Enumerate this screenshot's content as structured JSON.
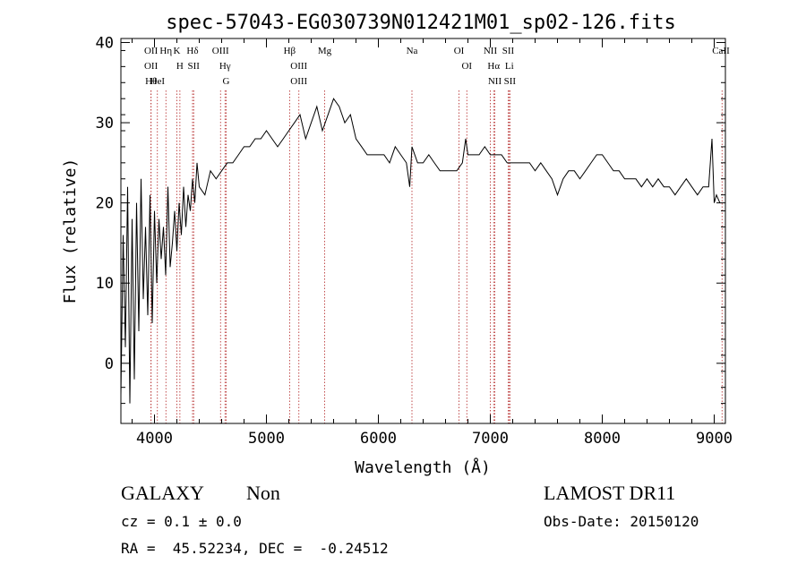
{
  "chart_data": {
    "type": "line",
    "title": "spec-57043-EG030739N012421M01_sp02-126.fits",
    "xlabel": "Wavelength (Å)",
    "ylabel": "Flux (relative)",
    "xlim": [
      3700,
      9100
    ],
    "ylim": [
      -7.5,
      40.5
    ],
    "xticks": [
      4000,
      5000,
      6000,
      7000,
      8000,
      9000
    ],
    "yticks": [
      0,
      10,
      20,
      30,
      40
    ],
    "grid": false,
    "series": [
      {
        "x": [
          3700,
          3720,
          3740,
          3760,
          3780,
          3800,
          3820,
          3840,
          3860,
          3880,
          3900,
          3920,
          3940,
          3960,
          3980,
          4000,
          4020,
          4040,
          4060,
          4080,
          4100,
          4120,
          4140,
          4160,
          4180,
          4200,
          4220,
          4240,
          4260,
          4280,
          4300,
          4320,
          4340,
          4360,
          4380,
          4400,
          4450,
          4500,
          4550,
          4600,
          4650,
          4700,
          4750,
          4800,
          4850,
          4900,
          4950,
          5000,
          5050,
          5100,
          5150,
          5200,
          5250,
          5300,
          5350,
          5400,
          5450,
          5500,
          5550,
          5600,
          5650,
          5700,
          5750,
          5800,
          5850,
          5900,
          5950,
          6000,
          6050,
          6100,
          6150,
          6200,
          6250,
          6280,
          6300,
          6350,
          6400,
          6450,
          6500,
          6550,
          6600,
          6650,
          6700,
          6750,
          6780,
          6800,
          6850,
          6900,
          6950,
          7000,
          7050,
          7100,
          7150,
          7200,
          7250,
          7300,
          7350,
          7400,
          7450,
          7500,
          7550,
          7600,
          7650,
          7700,
          7750,
          7800,
          7850,
          7900,
          7950,
          8000,
          8050,
          8100,
          8150,
          8200,
          8250,
          8300,
          8350,
          8400,
          8450,
          8500,
          8550,
          8600,
          8650,
          8700,
          8750,
          8800,
          8850,
          8900,
          8950,
          8980,
          9000,
          9020,
          9050
        ],
        "values": [
          -4,
          16,
          2,
          22,
          -5,
          18,
          -2,
          20,
          4,
          23,
          8,
          17,
          6,
          21,
          5,
          19,
          10,
          18,
          13,
          17,
          11,
          22,
          12,
          15,
          19,
          14,
          20,
          16,
          22,
          17,
          21,
          19,
          23,
          20,
          25,
          22,
          21,
          24,
          23,
          24,
          25,
          25,
          26,
          27,
          27,
          28,
          28,
          29,
          28,
          27,
          28,
          29,
          30,
          31,
          28,
          30,
          32,
          29,
          31,
          33,
          32,
          30,
          31,
          28,
          27,
          26,
          26,
          26,
          26,
          25,
          27,
          26,
          25,
          22,
          27,
          25,
          25,
          26,
          25,
          24,
          24,
          24,
          24,
          25,
          28,
          26,
          26,
          26,
          27,
          26,
          26,
          26,
          25,
          25,
          25,
          25,
          25,
          24,
          25,
          24,
          23,
          21,
          23,
          24,
          24,
          23,
          24,
          25,
          26,
          26,
          25,
          24,
          24,
          23,
          23,
          23,
          22,
          23,
          22,
          23,
          22,
          22,
          21,
          22,
          23,
          22,
          21,
          22,
          22,
          28,
          20,
          21,
          20
        ]
      }
    ],
    "lines": [
      {
        "x": 3969,
        "labels": [
          "OII",
          "OII"
        ]
      },
      {
        "x": 3970,
        "labels": [
          "Hθ"
        ]
      },
      {
        "x": 4102,
        "labels": [
          "Hη"
        ]
      },
      {
        "x": 4026,
        "labels": [
          "HeI"
        ]
      },
      {
        "x": 4200,
        "labels": [
          "K"
        ]
      },
      {
        "x": 4227,
        "labels": [
          "H"
        ]
      },
      {
        "x": 4340,
        "labels": [
          "Hδ"
        ]
      },
      {
        "x": 4350,
        "labels": [
          "SII"
        ]
      },
      {
        "x": 4590,
        "labels": [
          "OIII"
        ]
      },
      {
        "x": 4630,
        "labels": [
          "Hγ"
        ]
      },
      {
        "x": 4640,
        "labels": [
          "G"
        ]
      },
      {
        "x": 5207,
        "labels": [
          "Hβ"
        ]
      },
      {
        "x": 5290,
        "labels": [
          "OIII",
          "OIII"
        ]
      },
      {
        "x": 5520,
        "labels": [
          "Mg"
        ]
      },
      {
        "x": 6300,
        "labels": [
          "Na"
        ]
      },
      {
        "x": 6720,
        "labels": [
          "OI"
        ]
      },
      {
        "x": 6790,
        "labels": [
          "OI"
        ]
      },
      {
        "x": 7000,
        "labels": [
          "NII"
        ]
      },
      {
        "x": 7030,
        "labels": [
          "Hα"
        ]
      },
      {
        "x": 7040,
        "labels": [
          "NII"
        ]
      },
      {
        "x": 7160,
        "labels": [
          "SII"
        ]
      },
      {
        "x": 7170,
        "labels": [
          "Li"
        ]
      },
      {
        "x": 7175,
        "labels": [
          "SII"
        ]
      },
      {
        "x": 9070,
        "labels": [
          "CaII"
        ]
      }
    ]
  },
  "info": {
    "class": "GALAXY",
    "subclass": "Non",
    "survey": "LAMOST DR11",
    "cz": "cz = 0.1 ± 0.0",
    "obs_date": "Obs-Date: 20150120",
    "radec": "RA =  45.52234, DEC =  -0.24512"
  }
}
